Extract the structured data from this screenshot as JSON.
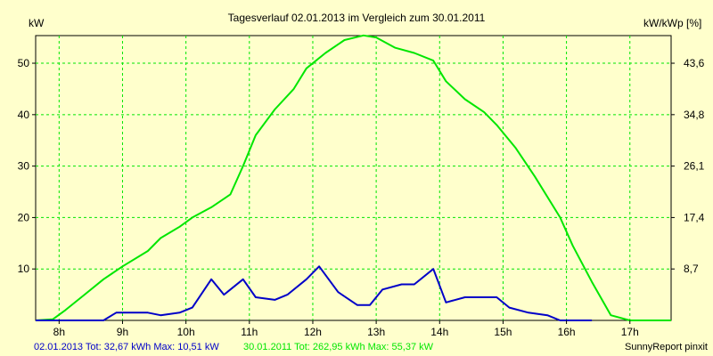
{
  "chart_data": {
    "type": "line",
    "title": "Tagesverlauf 02.01.2013 im Vergleich zum 30.01.2011",
    "ylabel_left": "kW",
    "ylabel_right": "kW/kWp [%]",
    "ylim": [
      0,
      55.37
    ],
    "yticks_left": [
      "10",
      "20",
      "30",
      "40",
      "50"
    ],
    "yticks_left_values": [
      10,
      20,
      30,
      40,
      50
    ],
    "yticks_right": [
      "8,7",
      "17,4",
      "26,1",
      "34,8",
      "43,6"
    ],
    "x_tick_labels": [
      "8h",
      "9h",
      "10h",
      "11h",
      "12h",
      "13h",
      "14h",
      "15h",
      "16h",
      "17h"
    ],
    "x_tick_values": [
      8,
      9,
      10,
      11,
      12,
      13,
      14,
      15,
      16,
      17
    ],
    "xlim": [
      7.63,
      17.65
    ],
    "grid": true,
    "series": [
      {
        "name": "30.01.2011",
        "color": "#00e600",
        "x": [
          7.63,
          7.9,
          8.1,
          8.4,
          8.7,
          9.0,
          9.4,
          9.6,
          9.9,
          10.1,
          10.4,
          10.7,
          10.9,
          11.1,
          11.4,
          11.7,
          11.9,
          12.2,
          12.5,
          12.8,
          13.0,
          13.3,
          13.6,
          13.9,
          14.1,
          14.4,
          14.7,
          14.9,
          15.2,
          15.5,
          15.9,
          16.1,
          16.4,
          16.7,
          17.0,
          17.3,
          17.65
        ],
        "values": [
          0.0,
          0.2,
          2.0,
          5.0,
          8.0,
          10.5,
          13.5,
          16.0,
          18.2,
          20.0,
          22.0,
          24.5,
          30.0,
          36.0,
          41.0,
          45.0,
          49.0,
          52.0,
          54.5,
          55.4,
          55.0,
          53.0,
          52.0,
          50.5,
          46.5,
          43.0,
          40.5,
          38.0,
          33.5,
          28.0,
          20.0,
          14.5,
          7.5,
          1.0,
          0.0,
          0.0,
          0.0
        ]
      },
      {
        "name": "02.01.2013",
        "color": "#0000c8",
        "x": [
          7.63,
          7.9,
          8.1,
          8.4,
          8.7,
          8.9,
          9.1,
          9.4,
          9.6,
          9.9,
          10.1,
          10.4,
          10.6,
          10.9,
          11.1,
          11.4,
          11.6,
          11.9,
          12.1,
          12.4,
          12.7,
          12.9,
          13.1,
          13.4,
          13.6,
          13.9,
          14.1,
          14.4,
          14.7,
          14.9,
          15.1,
          15.4,
          15.7,
          15.9,
          16.1,
          16.4
        ],
        "values": [
          0.0,
          0.0,
          0.0,
          0.0,
          0.0,
          1.5,
          1.5,
          1.5,
          1.0,
          1.5,
          2.5,
          8.0,
          5.0,
          8.0,
          4.5,
          4.0,
          5.0,
          8.0,
          10.5,
          5.5,
          3.0,
          3.0,
          6.0,
          7.0,
          7.0,
          10.0,
          3.5,
          4.5,
          4.5,
          4.5,
          2.5,
          1.5,
          1.0,
          0.0,
          0.0,
          0.0
        ]
      }
    ]
  },
  "legend": {
    "series1_text": "02.01.2013 Tot: 32,67 kWh Max: 10,51 kW",
    "series2_text": "30.01.2011 Tot: 262,95 kWh Max: 55,37 kW",
    "credit": "SunnyReport pinxit"
  }
}
